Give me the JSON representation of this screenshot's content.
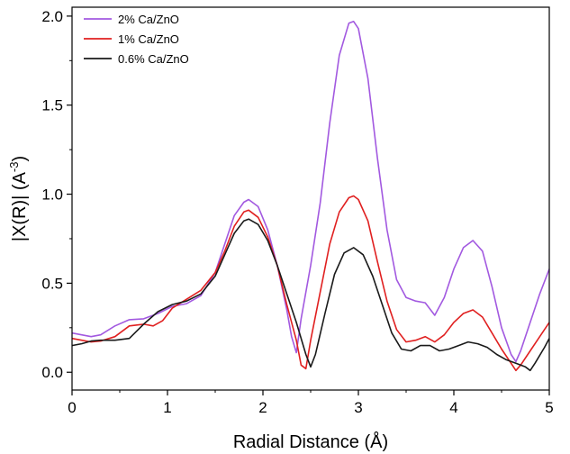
{
  "chart_data": {
    "type": "line",
    "title": "",
    "xlabel": "Radial Distance (Å)",
    "ylabel_main": "|X(R)| (A",
    "ylabel_sup": "-3",
    "ylabel_close": ")",
    "xlim": [
      0,
      5
    ],
    "ylim": [
      -0.1,
      2.05
    ],
    "xticks": [
      0,
      1,
      2,
      3,
      4,
      5
    ],
    "xtick_labels": [
      "0",
      "1",
      "2",
      "3",
      "4",
      "5"
    ],
    "yticks": [
      0.0,
      0.5,
      1.0,
      1.5,
      2.0
    ],
    "ytick_labels": [
      "0.0",
      "0.5",
      "1.0",
      "1.5",
      "2.0"
    ],
    "grid": false,
    "legend_position": "top-left",
    "series": [
      {
        "name": "2% Ca/ZnO",
        "color": "#a259e0",
        "points": [
          [
            0,
            0.22
          ],
          [
            0.1,
            0.21
          ],
          [
            0.2,
            0.2
          ],
          [
            0.3,
            0.21
          ],
          [
            0.45,
            0.26
          ],
          [
            0.6,
            0.295
          ],
          [
            0.75,
            0.3
          ],
          [
            0.9,
            0.33
          ],
          [
            1.05,
            0.37
          ],
          [
            1.2,
            0.385
          ],
          [
            1.35,
            0.43
          ],
          [
            1.5,
            0.56
          ],
          [
            1.6,
            0.72
          ],
          [
            1.7,
            0.88
          ],
          [
            1.8,
            0.955
          ],
          [
            1.85,
            0.97
          ],
          [
            1.95,
            0.93
          ],
          [
            2.05,
            0.8
          ],
          [
            2.15,
            0.6
          ],
          [
            2.25,
            0.35
          ],
          [
            2.3,
            0.2
          ],
          [
            2.35,
            0.11
          ],
          [
            2.4,
            0.3
          ],
          [
            2.5,
            0.6
          ],
          [
            2.6,
            0.95
          ],
          [
            2.7,
            1.4
          ],
          [
            2.8,
            1.78
          ],
          [
            2.9,
            1.96
          ],
          [
            2.95,
            1.97
          ],
          [
            3.0,
            1.93
          ],
          [
            3.1,
            1.65
          ],
          [
            3.2,
            1.2
          ],
          [
            3.3,
            0.8
          ],
          [
            3.4,
            0.52
          ],
          [
            3.5,
            0.42
          ],
          [
            3.6,
            0.4
          ],
          [
            3.7,
            0.39
          ],
          [
            3.8,
            0.32
          ],
          [
            3.9,
            0.42
          ],
          [
            4.0,
            0.58
          ],
          [
            4.1,
            0.7
          ],
          [
            4.2,
            0.74
          ],
          [
            4.3,
            0.68
          ],
          [
            4.4,
            0.48
          ],
          [
            4.5,
            0.25
          ],
          [
            4.6,
            0.1
          ],
          [
            4.65,
            0.06
          ],
          [
            4.7,
            0.12
          ],
          [
            4.8,
            0.28
          ],
          [
            4.9,
            0.44
          ],
          [
            5.0,
            0.58
          ]
        ]
      },
      {
        "name": "1% Ca/ZnO",
        "color": "#e02020",
        "points": [
          [
            0,
            0.19
          ],
          [
            0.1,
            0.18
          ],
          [
            0.2,
            0.17
          ],
          [
            0.3,
            0.175
          ],
          [
            0.45,
            0.2
          ],
          [
            0.6,
            0.26
          ],
          [
            0.75,
            0.27
          ],
          [
            0.85,
            0.26
          ],
          [
            0.95,
            0.29
          ],
          [
            1.05,
            0.36
          ],
          [
            1.2,
            0.41
          ],
          [
            1.35,
            0.46
          ],
          [
            1.5,
            0.56
          ],
          [
            1.6,
            0.68
          ],
          [
            1.7,
            0.82
          ],
          [
            1.8,
            0.9
          ],
          [
            1.85,
            0.91
          ],
          [
            1.95,
            0.87
          ],
          [
            2.05,
            0.76
          ],
          [
            2.15,
            0.6
          ],
          [
            2.25,
            0.38
          ],
          [
            2.35,
            0.18
          ],
          [
            2.4,
            0.04
          ],
          [
            2.45,
            0.02
          ],
          [
            2.5,
            0.18
          ],
          [
            2.6,
            0.45
          ],
          [
            2.7,
            0.72
          ],
          [
            2.8,
            0.9
          ],
          [
            2.9,
            0.98
          ],
          [
            2.95,
            0.99
          ],
          [
            3.0,
            0.97
          ],
          [
            3.1,
            0.85
          ],
          [
            3.2,
            0.62
          ],
          [
            3.3,
            0.4
          ],
          [
            3.4,
            0.24
          ],
          [
            3.5,
            0.17
          ],
          [
            3.6,
            0.18
          ],
          [
            3.7,
            0.2
          ],
          [
            3.8,
            0.17
          ],
          [
            3.9,
            0.21
          ],
          [
            4.0,
            0.28
          ],
          [
            4.1,
            0.33
          ],
          [
            4.2,
            0.35
          ],
          [
            4.3,
            0.31
          ],
          [
            4.4,
            0.22
          ],
          [
            4.5,
            0.13
          ],
          [
            4.6,
            0.05
          ],
          [
            4.65,
            0.01
          ],
          [
            4.7,
            0.04
          ],
          [
            4.8,
            0.12
          ],
          [
            4.9,
            0.2
          ],
          [
            5.0,
            0.28
          ]
        ]
      },
      {
        "name": "0.6% Ca/ZnO",
        "color": "#1a1a1a",
        "points": [
          [
            0,
            0.15
          ],
          [
            0.1,
            0.16
          ],
          [
            0.2,
            0.175
          ],
          [
            0.3,
            0.18
          ],
          [
            0.45,
            0.18
          ],
          [
            0.6,
            0.19
          ],
          [
            0.75,
            0.27
          ],
          [
            0.9,
            0.34
          ],
          [
            1.05,
            0.38
          ],
          [
            1.2,
            0.4
          ],
          [
            1.35,
            0.44
          ],
          [
            1.5,
            0.54
          ],
          [
            1.6,
            0.66
          ],
          [
            1.7,
            0.78
          ],
          [
            1.8,
            0.85
          ],
          [
            1.85,
            0.86
          ],
          [
            1.95,
            0.83
          ],
          [
            2.05,
            0.74
          ],
          [
            2.15,
            0.6
          ],
          [
            2.25,
            0.44
          ],
          [
            2.35,
            0.28
          ],
          [
            2.45,
            0.1
          ],
          [
            2.5,
            0.03
          ],
          [
            2.55,
            0.1
          ],
          [
            2.65,
            0.33
          ],
          [
            2.75,
            0.55
          ],
          [
            2.85,
            0.67
          ],
          [
            2.95,
            0.7
          ],
          [
            3.05,
            0.66
          ],
          [
            3.15,
            0.54
          ],
          [
            3.25,
            0.38
          ],
          [
            3.35,
            0.22
          ],
          [
            3.45,
            0.13
          ],
          [
            3.55,
            0.12
          ],
          [
            3.65,
            0.15
          ],
          [
            3.75,
            0.15
          ],
          [
            3.85,
            0.12
          ],
          [
            3.95,
            0.13
          ],
          [
            4.05,
            0.15
          ],
          [
            4.15,
            0.17
          ],
          [
            4.25,
            0.16
          ],
          [
            4.35,
            0.14
          ],
          [
            4.45,
            0.1
          ],
          [
            4.55,
            0.07
          ],
          [
            4.65,
            0.05
          ],
          [
            4.75,
            0.03
          ],
          [
            4.8,
            0.01
          ],
          [
            4.85,
            0.05
          ],
          [
            4.95,
            0.14
          ],
          [
            5.0,
            0.19
          ]
        ]
      }
    ]
  }
}
